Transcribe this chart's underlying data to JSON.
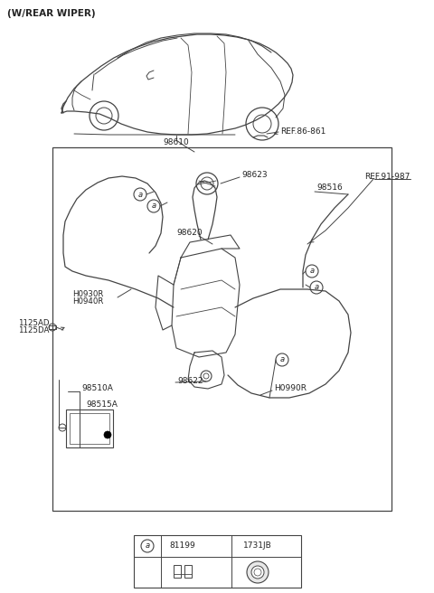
{
  "bg_color": "#ffffff",
  "lc": "#444444",
  "tc": "#222222",
  "fig_width": 4.8,
  "fig_height": 6.56,
  "dpi": 100,
  "labels": {
    "title": "(W/REAR WIPER)",
    "ref_86": "REF.86-861",
    "ref_91": "REF.91-987",
    "p98610": "98610",
    "p98623": "98623",
    "p98620": "98620",
    "p98516": "98516",
    "p98510a": "98510A",
    "p98515a": "98515A",
    "p98622": "98622",
    "pH0990r": "H0990R",
    "p1125ad": "1125AD",
    "p1125da": "1125DA",
    "pH0930r": "H0930R",
    "pH0940r": "H0940R",
    "la": "a",
    "l81199": "81199",
    "l1731jb": "1731JB"
  }
}
